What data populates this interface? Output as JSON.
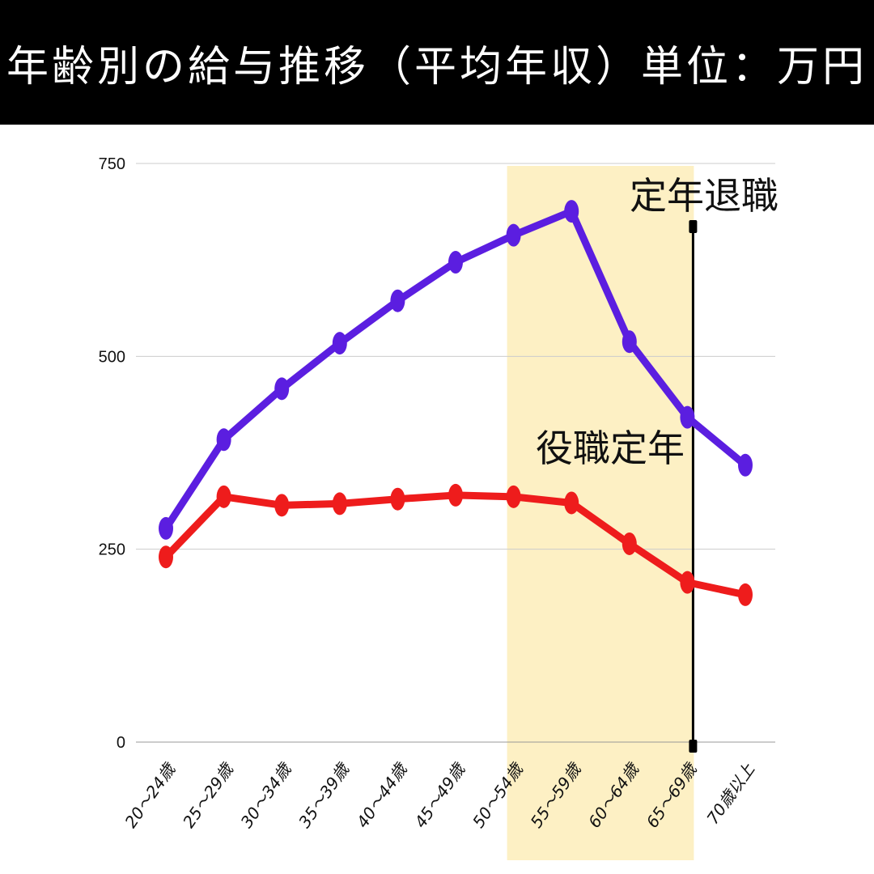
{
  "header": {
    "title": "年齢別の給与推移（平均年収）単位：万円"
  },
  "colors": {
    "title_bg": "#000000",
    "title_text": "#ffffff",
    "series_1": "#5b1ee0",
    "series_2": "#ee1c1c",
    "highlight_band": "#fdf0c4",
    "grid": "#cccccc",
    "marker_line": "#000000"
  },
  "annotations": {
    "retirement_label": "定年退職",
    "position_retirement_label": "役職定年"
  },
  "chart_data": {
    "type": "line",
    "title": "年齢別の給与推移（平均年収）単位：万円",
    "xlabel": "",
    "ylabel": "",
    "ylim": [
      0,
      750
    ],
    "yticks": [
      0,
      250,
      500,
      750
    ],
    "grid": true,
    "legend": null,
    "categories": [
      "20～24歳",
      "25～29歳",
      "30～34歳",
      "35～39歳",
      "40～44歳",
      "45～49歳",
      "50～54歳",
      "55～59歳",
      "60～64歳",
      "65～69歳",
      "70歳以上"
    ],
    "series": [
      {
        "name": "purple_series",
        "color": "#5b1ee0",
        "values": [
          277,
          392,
          458,
          517,
          572,
          622,
          657,
          688,
          519,
          421,
          359
        ]
      },
      {
        "name": "red_series",
        "color": "#ee1c1c",
        "values": [
          240,
          318,
          307,
          309,
          315,
          320,
          318,
          310,
          257,
          207,
          191
        ]
      }
    ],
    "highlight_band": {
      "from_category": "50～54歳",
      "to_category": "65～69歳",
      "label": "役職定年"
    },
    "vertical_marker": {
      "at_category": "65～69歳",
      "label": "定年退職"
    }
  }
}
